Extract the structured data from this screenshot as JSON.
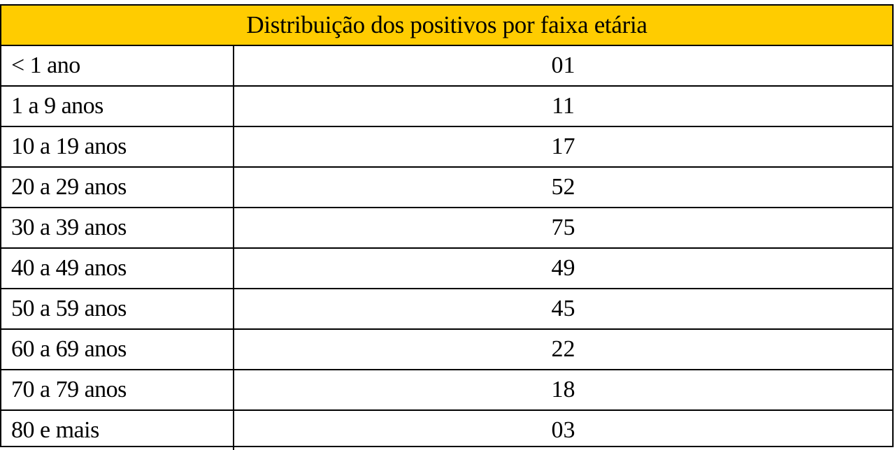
{
  "table": {
    "title": "Distribuição dos positivos por faixa etária",
    "header_color": "#ffcc00",
    "rows": [
      {
        "age": "< 1 ano",
        "value": "01"
      },
      {
        "age": "1 a 9 anos",
        "value": "11"
      },
      {
        "age": "10 a 19 anos",
        "value": "17"
      },
      {
        "age": "20 a 29 anos",
        "value": "52"
      },
      {
        "age": "30 a 39 anos",
        "value": "75"
      },
      {
        "age": "40 a 49 anos",
        "value": "49"
      },
      {
        "age": "50 a 59 anos",
        "value": "45"
      },
      {
        "age": "60 a 69 anos",
        "value": "22"
      },
      {
        "age": "70 a 79 anos",
        "value": "18"
      },
      {
        "age": "80 e mais",
        "value": "03"
      }
    ]
  }
}
